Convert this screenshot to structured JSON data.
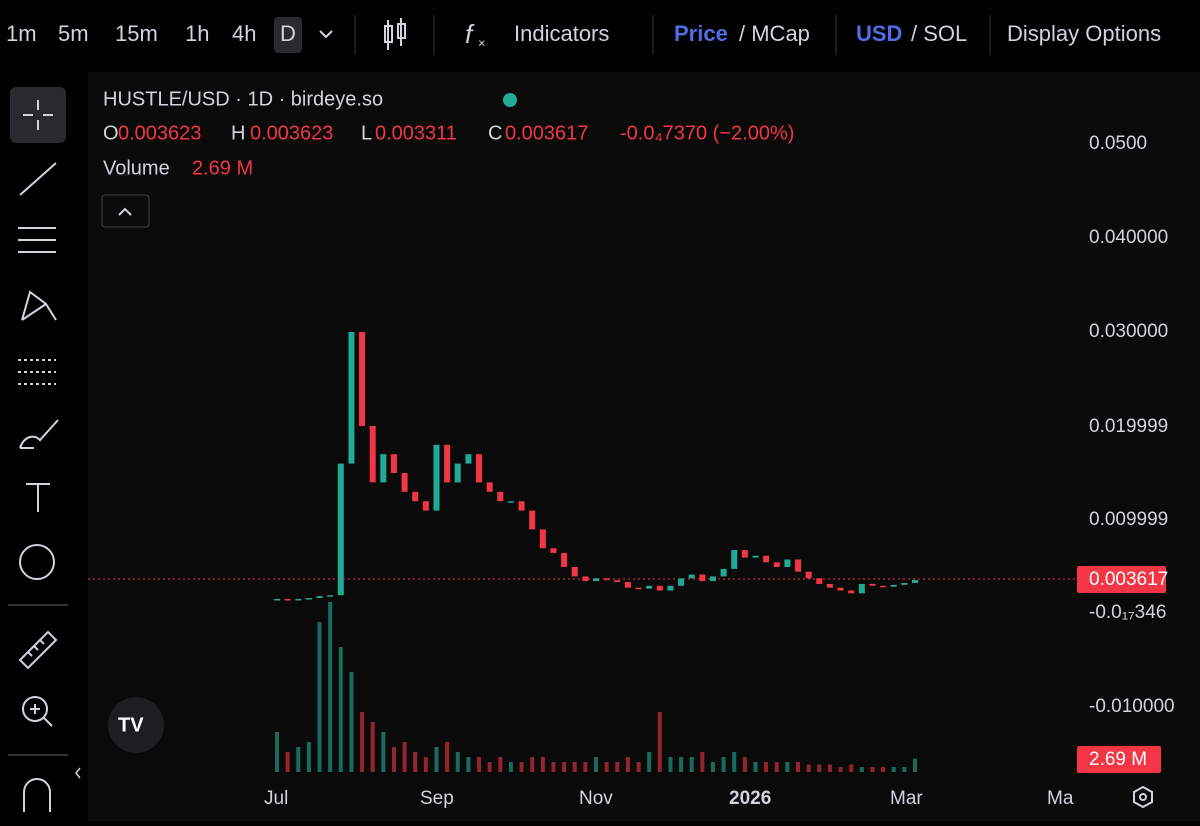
{
  "toolbar": {
    "intervals": [
      "1m",
      "5m",
      "15m",
      "1h",
      "4h",
      "D"
    ],
    "indicators": "Indicators",
    "price": "Price",
    "mcap": "/ MCap",
    "usd": "USD",
    "sol": "/ SOL",
    "display": "Display Options"
  },
  "legend": {
    "symbol": "HUSTLE/USD · 1D · birdeye.so",
    "o_label": "O",
    "o": "0.003623",
    "h_label": "H",
    "h": "0.003623",
    "l_label": "L",
    "l": "0.003311",
    "c_label": "C",
    "c": "0.003617",
    "change": "-0.0₄7370 (−2.00%)",
    "volume_label": "Volume",
    "volume": "2.69 M"
  },
  "price_axis": [
    "0.0500",
    "0.040000",
    "0.030000",
    "0.019999",
    "0.009999",
    "-0.0₁₇346",
    "-0.010000"
  ],
  "last_price": "0.003617",
  "last_volume": "2.69 M",
  "time_axis": [
    "Jul",
    "Sep",
    "Nov",
    "2026",
    "Mar",
    "Ma"
  ],
  "chart_data": {
    "type": "candlestick",
    "price": [
      0.0016,
      0.0015,
      0.0016,
      0.0017,
      0.0019,
      0.002,
      0.016,
      0.03,
      0.02,
      0.014,
      0.017,
      0.015,
      0.013,
      0.012,
      0.011,
      0.018,
      0.014,
      0.016,
      0.017,
      0.014,
      0.013,
      0.012,
      0.012,
      0.011,
      0.009,
      0.007,
      0.0065,
      0.005,
      0.004,
      0.0035,
      0.0038,
      0.0036,
      0.0034,
      0.0028,
      0.0027,
      0.003,
      0.0025,
      0.003,
      0.0038,
      0.0042,
      0.0035,
      0.004,
      0.0048,
      0.0068,
      0.006,
      0.0062,
      0.0055,
      0.005,
      0.0058,
      0.0045,
      0.0038,
      0.0032,
      0.0028,
      0.0025,
      0.0022,
      0.0032,
      0.003,
      0.0029,
      0.0031,
      0.0033,
      0.003617
    ],
    "volume": [
      8,
      4,
      5,
      6,
      30,
      34,
      25,
      20,
      12,
      10,
      8,
      5,
      6,
      4,
      3,
      5,
      6,
      4,
      3,
      3,
      2,
      3,
      2,
      2,
      3,
      3,
      2,
      2,
      2,
      2,
      3,
      2,
      2,
      3,
      2,
      4,
      12,
      3,
      3,
      3,
      4,
      2,
      3,
      4,
      3,
      2,
      2,
      2,
      2,
      2,
      1.5,
      1.5,
      1.5,
      1,
      1.5,
      1,
      1,
      1,
      1,
      1,
      2.69
    ],
    "up_color": "#22ab94",
    "down_color": "#f23645"
  }
}
